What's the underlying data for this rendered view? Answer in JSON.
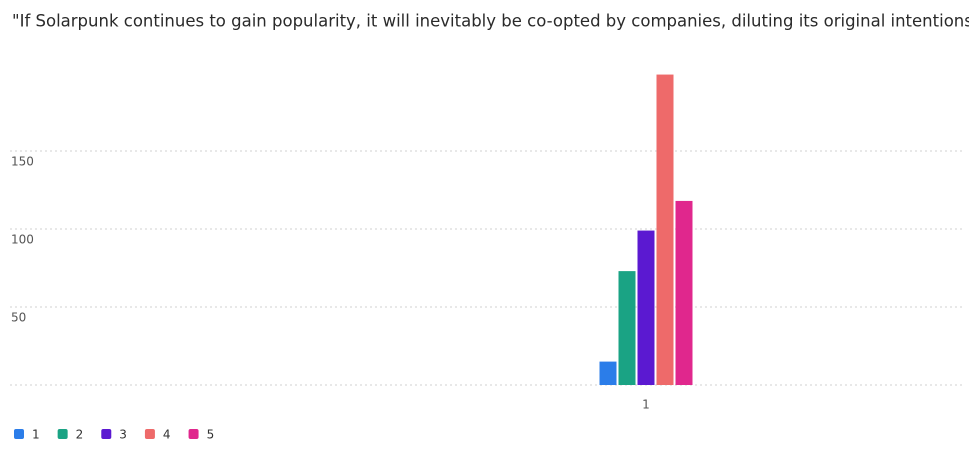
{
  "chart_data": {
    "type": "bar",
    "title": "\"If Solarpunk continues to gain popularity, it will inevitably be co-opted by companies, diluting its original intentions and values\"",
    "categories": [
      "1"
    ],
    "series": [
      {
        "name": "1",
        "color": "#2b7de9",
        "values": [
          15
        ]
      },
      {
        "name": "2",
        "color": "#1aa384",
        "values": [
          73
        ]
      },
      {
        "name": "3",
        "color": "#5b19d1",
        "values": [
          99
        ]
      },
      {
        "name": "4",
        "color": "#ee6a6a",
        "values": [
          199
        ]
      },
      {
        "name": "5",
        "color": "#e0278d",
        "values": [
          118
        ]
      }
    ],
    "ylim": [
      0,
      200
    ],
    "yticks": [
      50,
      100,
      150
    ],
    "grid": true,
    "legend": "bottom-left"
  }
}
